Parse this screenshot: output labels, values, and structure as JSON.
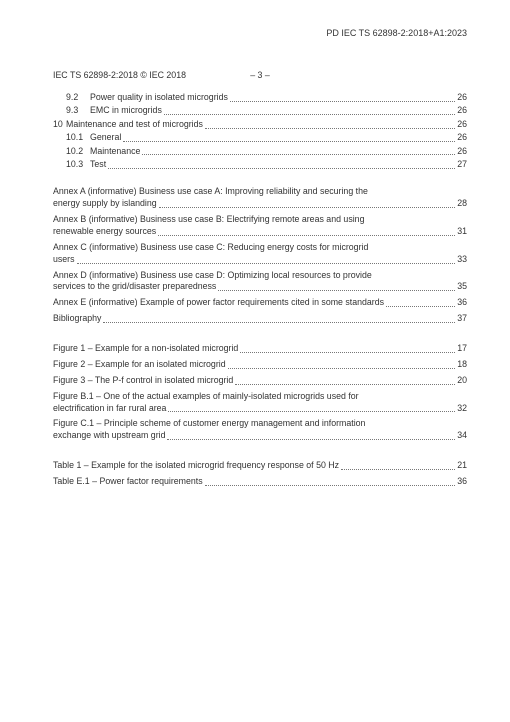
{
  "doc_id_top": "PD IEC TS 62898-2:2018+A1:2023",
  "header_left": "IEC TS 62898-2:2018 © IEC 2018",
  "header_center": "– 3 –",
  "sec_toc": [
    {
      "lvl": 2,
      "num": "9.2",
      "txt": "Power quality in isolated microgrids",
      "pg": "26"
    },
    {
      "lvl": 2,
      "num": "9.3",
      "txt": "EMC in microgrids",
      "pg": "26"
    },
    {
      "lvl": 1,
      "num": "10",
      "txt": "Maintenance and test of microgrids",
      "pg": "26"
    },
    {
      "lvl": 2,
      "num": "10.1",
      "txt": "General",
      "pg": "26"
    },
    {
      "lvl": 2,
      "num": "10.2",
      "txt": "Maintenance",
      "pg": "26"
    },
    {
      "lvl": 2,
      "num": "10.3",
      "txt": "Test",
      "pg": "27"
    }
  ],
  "annex_toc": [
    {
      "l1": "Annex A (informative)  Business use case A: Improving reliability and securing the",
      "l2": "energy supply by islanding",
      "pg": "28"
    },
    {
      "l1": "Annex B (informative)  Business use case B: Electrifying remote areas and using",
      "l2": "renewable energy sources",
      "pg": "31"
    },
    {
      "l1": "Annex C (informative)  Business use case C: Reducing energy costs for microgrid",
      "l2": "users",
      "pg": "33"
    },
    {
      "l1": "Annex D (informative)  Business use case D: Optimizing local resources to provide",
      "l2": "services to the grid/disaster preparedness",
      "pg": "35"
    },
    {
      "txt": "Annex E (informative)  Example of power factor requirements cited in some standards",
      "pg": "36"
    },
    {
      "txt": "Bibliography",
      "pg": "37"
    }
  ],
  "figure_toc": [
    {
      "txt": "Figure 1 – Example for a non-isolated microgrid",
      "pg": "17"
    },
    {
      "txt": "Figure 2 – Example for an isolated microgrid",
      "pg": "18"
    },
    {
      "txt": "Figure 3 – The P-f control in isolated microgrid",
      "pg": "20"
    },
    {
      "l1": "Figure B.1 – One of the actual examples of mainly-isolated microgrids used for",
      "l2": "electrification in far rural area",
      "pg": "32"
    },
    {
      "l1": "Figure C.1 – Principle scheme of customer energy management  and information",
      "l2": "exchange with upstream grid",
      "pg": "34"
    }
  ],
  "table_toc": [
    {
      "txt": "Table 1 – Example for the isolated microgrid frequency response of 50 Hz",
      "pg": "21"
    },
    {
      "txt": "Table E.1 – Power factor requirements",
      "pg": "36"
    }
  ]
}
